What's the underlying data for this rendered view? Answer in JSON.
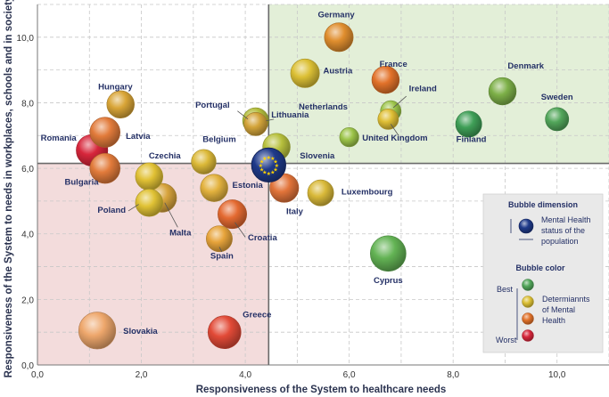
{
  "chart_data": {
    "type": "scatter",
    "xlabel": "Responsiveness of the System to healthcare needs",
    "ylabel": "Responsiveness of the System to needs in workplaces, schools and in society",
    "xlim": [
      0,
      11
    ],
    "ylim": [
      0,
      11
    ],
    "xticks": [
      "0,0",
      "2,0",
      "4,0",
      "6,0",
      "8,0",
      "10,0"
    ],
    "yticks": [
      "0,0",
      "2,0",
      "4,0",
      "6,0",
      "8,0",
      "10,0"
    ],
    "average": {
      "x": 4.45,
      "y": 6.15
    },
    "quadrants": {
      "good": "top-right green",
      "bad": "bottom-left red"
    },
    "points": [
      {
        "name": "Germany",
        "x": 5.8,
        "y": 10.0,
        "size": 4.2,
        "color": "#e08e2e"
      },
      {
        "name": "France",
        "x": 6.7,
        "y": 8.7,
        "size": 4.0,
        "color": "#e2722a"
      },
      {
        "name": "Austria",
        "x": 5.15,
        "y": 8.9,
        "size": 4.2,
        "color": "#dcc035"
      },
      {
        "name": "Denmark",
        "x": 8.95,
        "y": 8.35,
        "size": 4.0,
        "color": "#7db048"
      },
      {
        "name": "Ireland",
        "x": 6.8,
        "y": 7.75,
        "size": 3.0,
        "color": "#9cc449"
      },
      {
        "name": "United Kingdom",
        "x": 6.75,
        "y": 7.5,
        "size": 3.0,
        "color": "#dfbf35"
      },
      {
        "name": "Netherlands",
        "x": 6.0,
        "y": 6.95,
        "size": 2.8,
        "color": "#9cc449"
      },
      {
        "name": "Sweden",
        "x": 10.0,
        "y": 7.5,
        "size": 3.4,
        "color": "#52a65a"
      },
      {
        "name": "Finland",
        "x": 8.3,
        "y": 7.35,
        "size": 3.8,
        "color": "#3f9f57"
      },
      {
        "name": "Lithuania",
        "x": 4.2,
        "y": 7.45,
        "size": 3.8,
        "color": "#b3bd3c"
      },
      {
        "name": "Slovenia",
        "x": 4.6,
        "y": 6.65,
        "size": 4.0,
        "color": "#b7c03d"
      },
      {
        "name": "Portugal",
        "x": 4.2,
        "y": 7.35,
        "size": 3.4,
        "color": "#d3a43a"
      },
      {
        "name": "Hungary",
        "x": 1.6,
        "y": 7.95,
        "size": 4.0,
        "color": "#d9a537"
      },
      {
        "name": "Latvia",
        "x": 1.3,
        "y": 7.1,
        "size": 4.4,
        "color": "#e27b3b"
      },
      {
        "name": "Romania",
        "x": 1.05,
        "y": 6.55,
        "size": 4.6,
        "color": "#d7263b"
      },
      {
        "name": "Bulgaria",
        "x": 1.3,
        "y": 6.0,
        "size": 4.4,
        "color": "#e27b3b"
      },
      {
        "name": "Belgium",
        "x": 3.2,
        "y": 6.2,
        "size": 3.6,
        "color": "#dcb938"
      },
      {
        "name": "Czechia",
        "x": 2.15,
        "y": 5.75,
        "size": 4.0,
        "color": "#e1c135"
      },
      {
        "name": "Estonia",
        "x": 3.4,
        "y": 5.4,
        "size": 4.0,
        "color": "#e3b23e"
      },
      {
        "name": "Poland",
        "x": 2.15,
        "y": 4.95,
        "size": 4.0,
        "color": "#e0c235"
      },
      {
        "name": "Malta",
        "x": 2.4,
        "y": 5.1,
        "size": 4.2,
        "color": "#d7a33c"
      },
      {
        "name": "Italy",
        "x": 4.75,
        "y": 5.4,
        "size": 4.2,
        "color": "#e2743a"
      },
      {
        "name": "Luxembourg",
        "x": 5.45,
        "y": 5.25,
        "size": 3.8,
        "color": "#d9b939"
      },
      {
        "name": "Croatia",
        "x": 3.75,
        "y": 4.6,
        "size": 4.2,
        "color": "#e46a31"
      },
      {
        "name": "Spain",
        "x": 3.5,
        "y": 3.85,
        "size": 3.8,
        "color": "#e7a43b"
      },
      {
        "name": "Cyprus",
        "x": 6.75,
        "y": 3.4,
        "size": 5.2,
        "color": "#63b354"
      },
      {
        "name": "Slovakia",
        "x": 1.15,
        "y": 1.05,
        "size": 5.4,
        "color": "#eea76c"
      },
      {
        "name": "Greece",
        "x": 3.6,
        "y": 1.0,
        "size": 4.8,
        "color": "#e24a37"
      }
    ],
    "eu": {
      "x": 4.45,
      "y": 6.1,
      "size": 5.2,
      "color": "#1f3a8a"
    },
    "legend": {
      "dimension_title": "Bubble dimension",
      "dimension_text": [
        "Mental Health",
        "status of the",
        "population"
      ],
      "color_title": "Bubble color",
      "color_text": [
        "Determiannts",
        "of Mental",
        "Health"
      ],
      "best": "Best",
      "worst": "Worst",
      "scale_colors": [
        "#52a65a",
        "#dcc035",
        "#e2722a",
        "#d7263b"
      ]
    }
  }
}
